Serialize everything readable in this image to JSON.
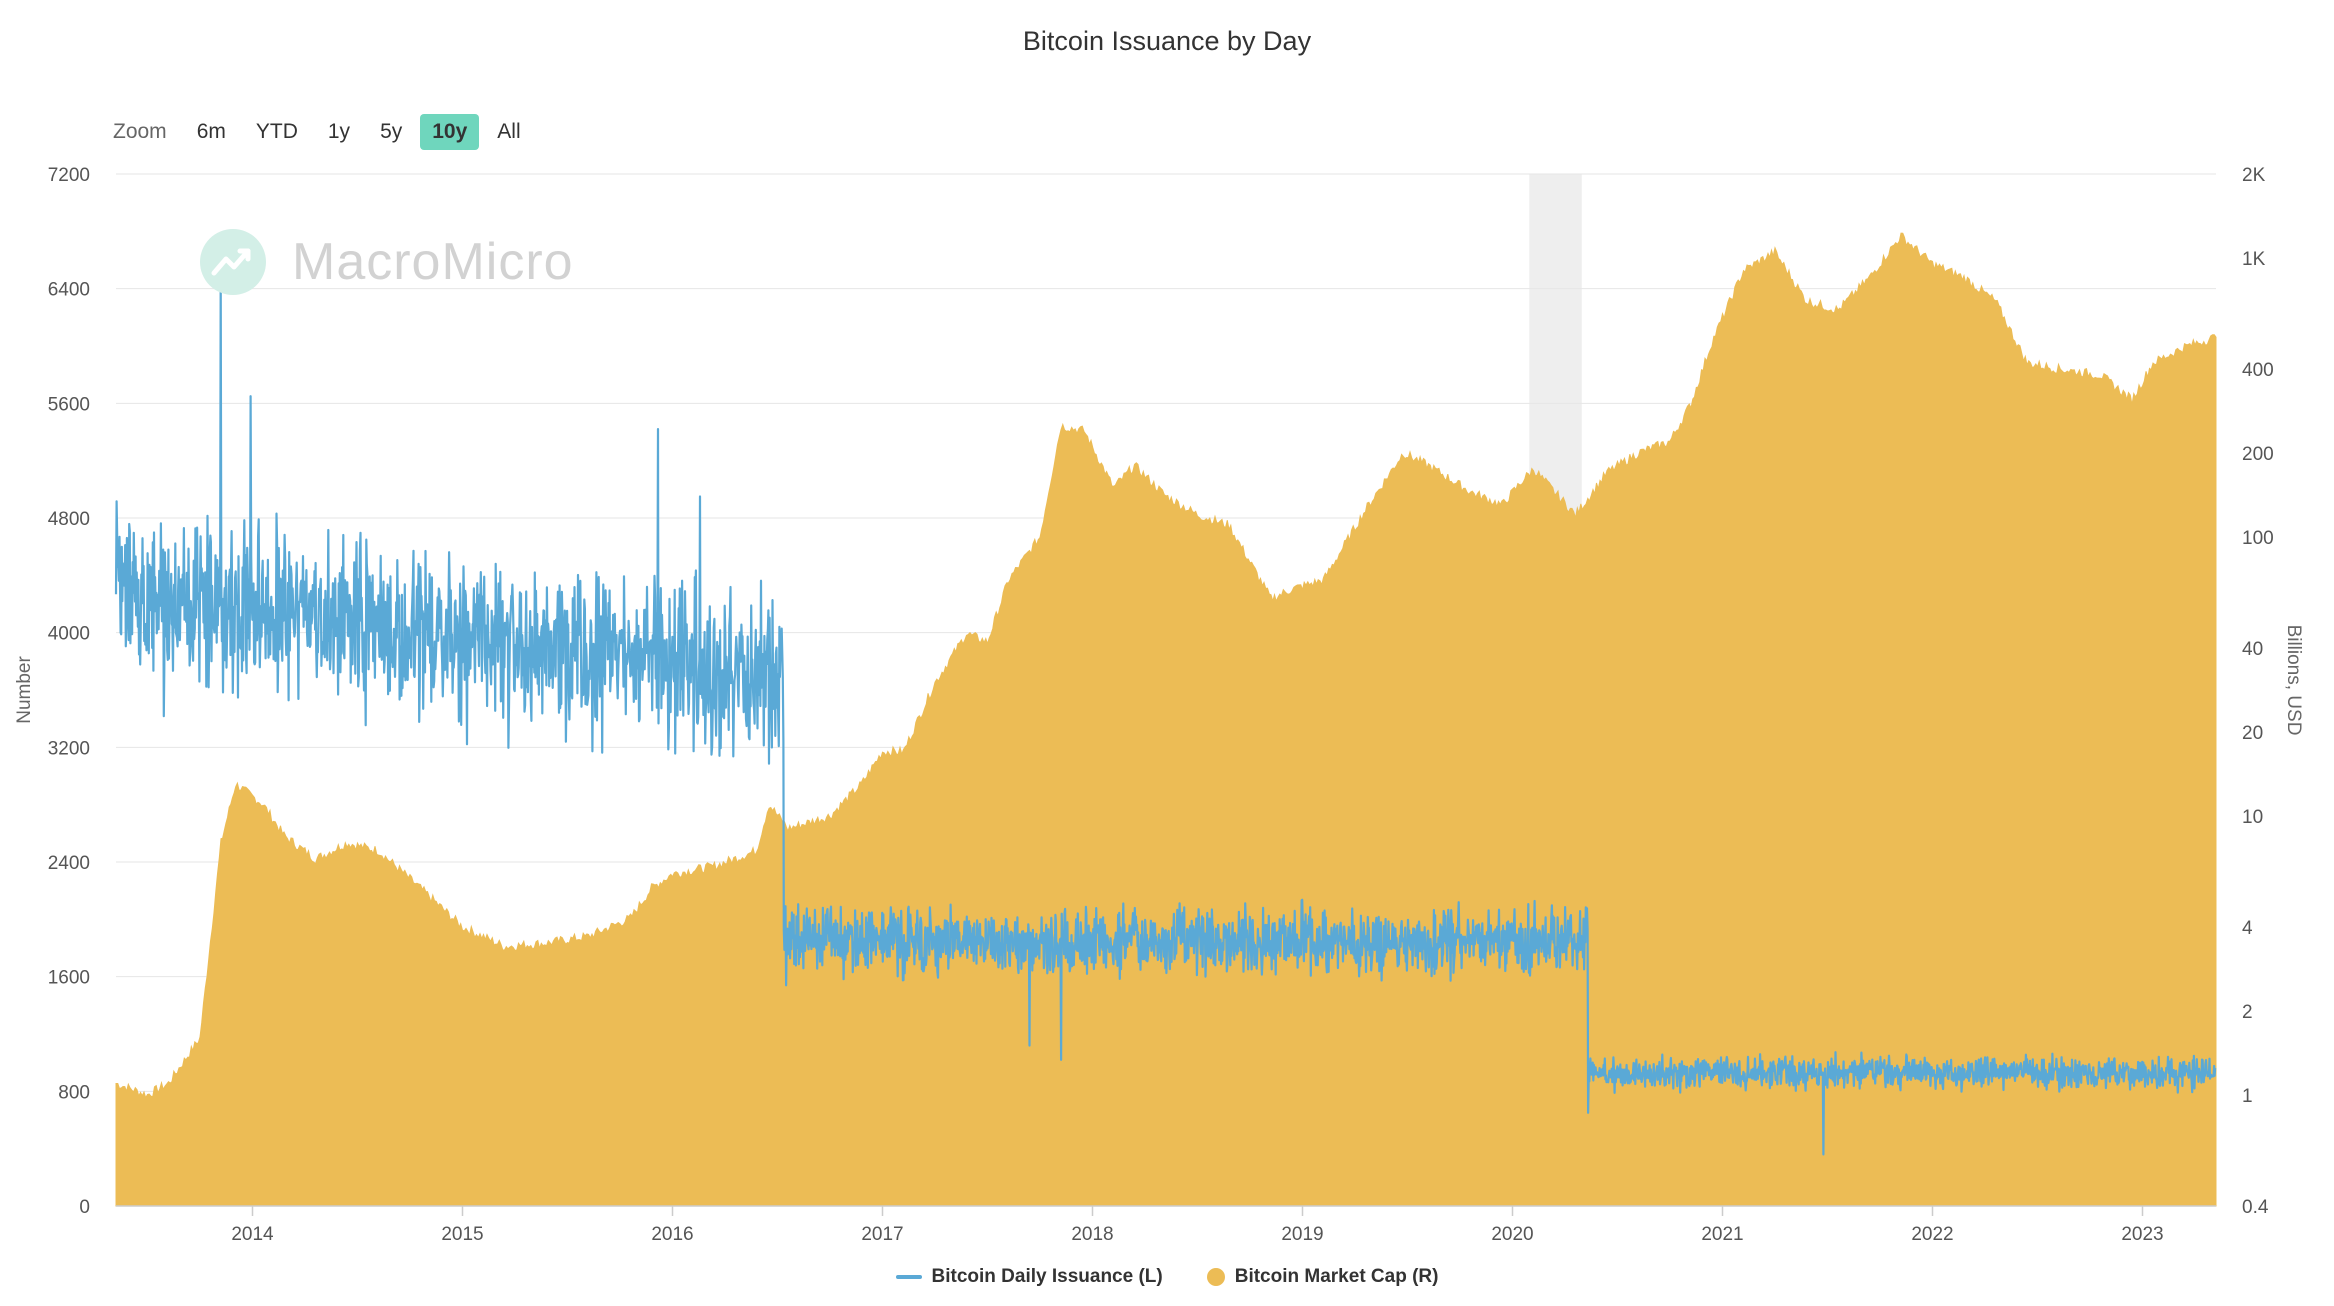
{
  "title": "Bitcoin Issuance by Day",
  "zoom": {
    "label": "Zoom",
    "buttons": [
      "6m",
      "YTD",
      "1y",
      "5y",
      "10y",
      "All"
    ],
    "active": "10y"
  },
  "watermark": {
    "text": "MacroMicro",
    "icon": "macromicro-logo-icon"
  },
  "colors": {
    "issuance": "#5aa9d6",
    "market_cap": "#ecbc55",
    "grid": "#e6e6e6",
    "recession": "#eeeeee",
    "zoom_active": "#6fd6bd"
  },
  "chart_data": {
    "type": "line+area",
    "title": "Bitcoin Issuance by Day",
    "xlabel": "",
    "x_range": [
      2013.35,
      2023.35
    ],
    "x_ticks": [
      2014,
      2015,
      2016,
      2017,
      2018,
      2019,
      2020,
      2021,
      2022,
      2023
    ],
    "left_axis": {
      "label": "Number",
      "ylim": [
        0,
        7200
      ],
      "ticks": [
        0,
        800,
        1600,
        2400,
        3200,
        4000,
        4800,
        5600,
        6400,
        7200
      ]
    },
    "right_axis": {
      "label": "Billions, USD",
      "scale": "log",
      "ylim": [
        0.4,
        2000
      ],
      "ticks": [
        0.4,
        1,
        2,
        4,
        10,
        20,
        40,
        100,
        200,
        400,
        1000,
        2000
      ],
      "tick_labels": [
        "0.4",
        "1",
        "2",
        "4",
        "10",
        "20",
        "40",
        "100",
        "200",
        "400",
        "1K",
        "2K"
      ]
    },
    "shaded_region": {
      "x_start": 2020.08,
      "x_end": 2020.33
    },
    "series": [
      {
        "name": "Bitcoin Daily Issuance (L)",
        "axis": "left",
        "type": "line",
        "segments": [
          {
            "x_start": 2013.35,
            "x_end": 2016.53,
            "mean_start": 4250,
            "mean_end": 3700,
            "spread": 450
          },
          {
            "x_start": 2016.53,
            "x_end": 2020.36,
            "mean_start": 1850,
            "mean_end": 1850,
            "spread": 180
          },
          {
            "x_start": 2020.36,
            "x_end": 2023.35,
            "mean_start": 930,
            "mean_end": 930,
            "spread": 90
          }
        ],
        "peaks": [
          [
            2013.85,
            6520
          ],
          [
            2013.99,
            5650
          ],
          [
            2015.93,
            5420
          ],
          [
            2016.13,
            4950
          ]
        ],
        "dips": [
          [
            2016.54,
            1540
          ],
          [
            2017.7,
            1120
          ],
          [
            2017.85,
            1020
          ],
          [
            2020.36,
            650
          ],
          [
            2021.48,
            360
          ]
        ]
      },
      {
        "name": "Bitcoin Market Cap (R)",
        "axis": "right",
        "type": "area",
        "x": [
          2013.35,
          2013.5,
          2013.6,
          2013.75,
          2013.85,
          2013.92,
          2014.05,
          2014.15,
          2014.3,
          2014.45,
          2014.6,
          2014.8,
          2015.0,
          2015.2,
          2015.4,
          2015.6,
          2015.8,
          2015.9,
          2016.0,
          2016.2,
          2016.4,
          2016.46,
          2016.55,
          2016.75,
          2016.9,
          2017.0,
          2017.1,
          2017.25,
          2017.4,
          2017.5,
          2017.6,
          2017.75,
          2017.85,
          2017.96,
          2018.1,
          2018.2,
          2018.35,
          2018.5,
          2018.65,
          2018.85,
          2018.95,
          2019.1,
          2019.3,
          2019.48,
          2019.6,
          2019.8,
          2019.95,
          2020.05,
          2020.1,
          2020.2,
          2020.3,
          2020.45,
          2020.6,
          2020.75,
          2020.85,
          2020.95,
          2021.1,
          2021.25,
          2021.4,
          2021.55,
          2021.7,
          2021.85,
          2022.0,
          2022.15,
          2022.3,
          2022.45,
          2022.6,
          2022.8,
          2022.95,
          2023.05,
          2023.2,
          2023.35
        ],
        "values": [
          1.1,
          1.0,
          1.1,
          1.6,
          8.0,
          13.0,
          11.0,
          8.5,
          7.0,
          8.0,
          7.5,
          5.5,
          4.0,
          3.4,
          3.5,
          3.7,
          4.3,
          5.5,
          6.2,
          6.6,
          7.5,
          11.0,
          9.0,
          10.0,
          13.0,
          17.0,
          17.0,
          30.0,
          45.0,
          42.0,
          70.0,
          100.0,
          250.0,
          240.0,
          150.0,
          180.0,
          140.0,
          120.0,
          110.0,
          60.0,
          65.0,
          70.0,
          125.0,
          200.0,
          180.0,
          145.0,
          130.0,
          160.0,
          175.0,
          145.0,
          120.0,
          170.0,
          200.0,
          220.0,
          300.0,
          500.0,
          900.0,
          1050.0,
          700.0,
          650.0,
          850.0,
          1200.0,
          950.0,
          850.0,
          700.0,
          420.0,
          400.0,
          380.0,
          310.0,
          420.0,
          480.0,
          520.0
        ]
      }
    ]
  },
  "legend": [
    {
      "label": "Bitcoin Daily Issuance (L)",
      "color": "#5aa9d6",
      "marker": "line"
    },
    {
      "label": "Bitcoin Market Cap (R)",
      "color": "#ecbc55",
      "marker": "dot"
    }
  ]
}
